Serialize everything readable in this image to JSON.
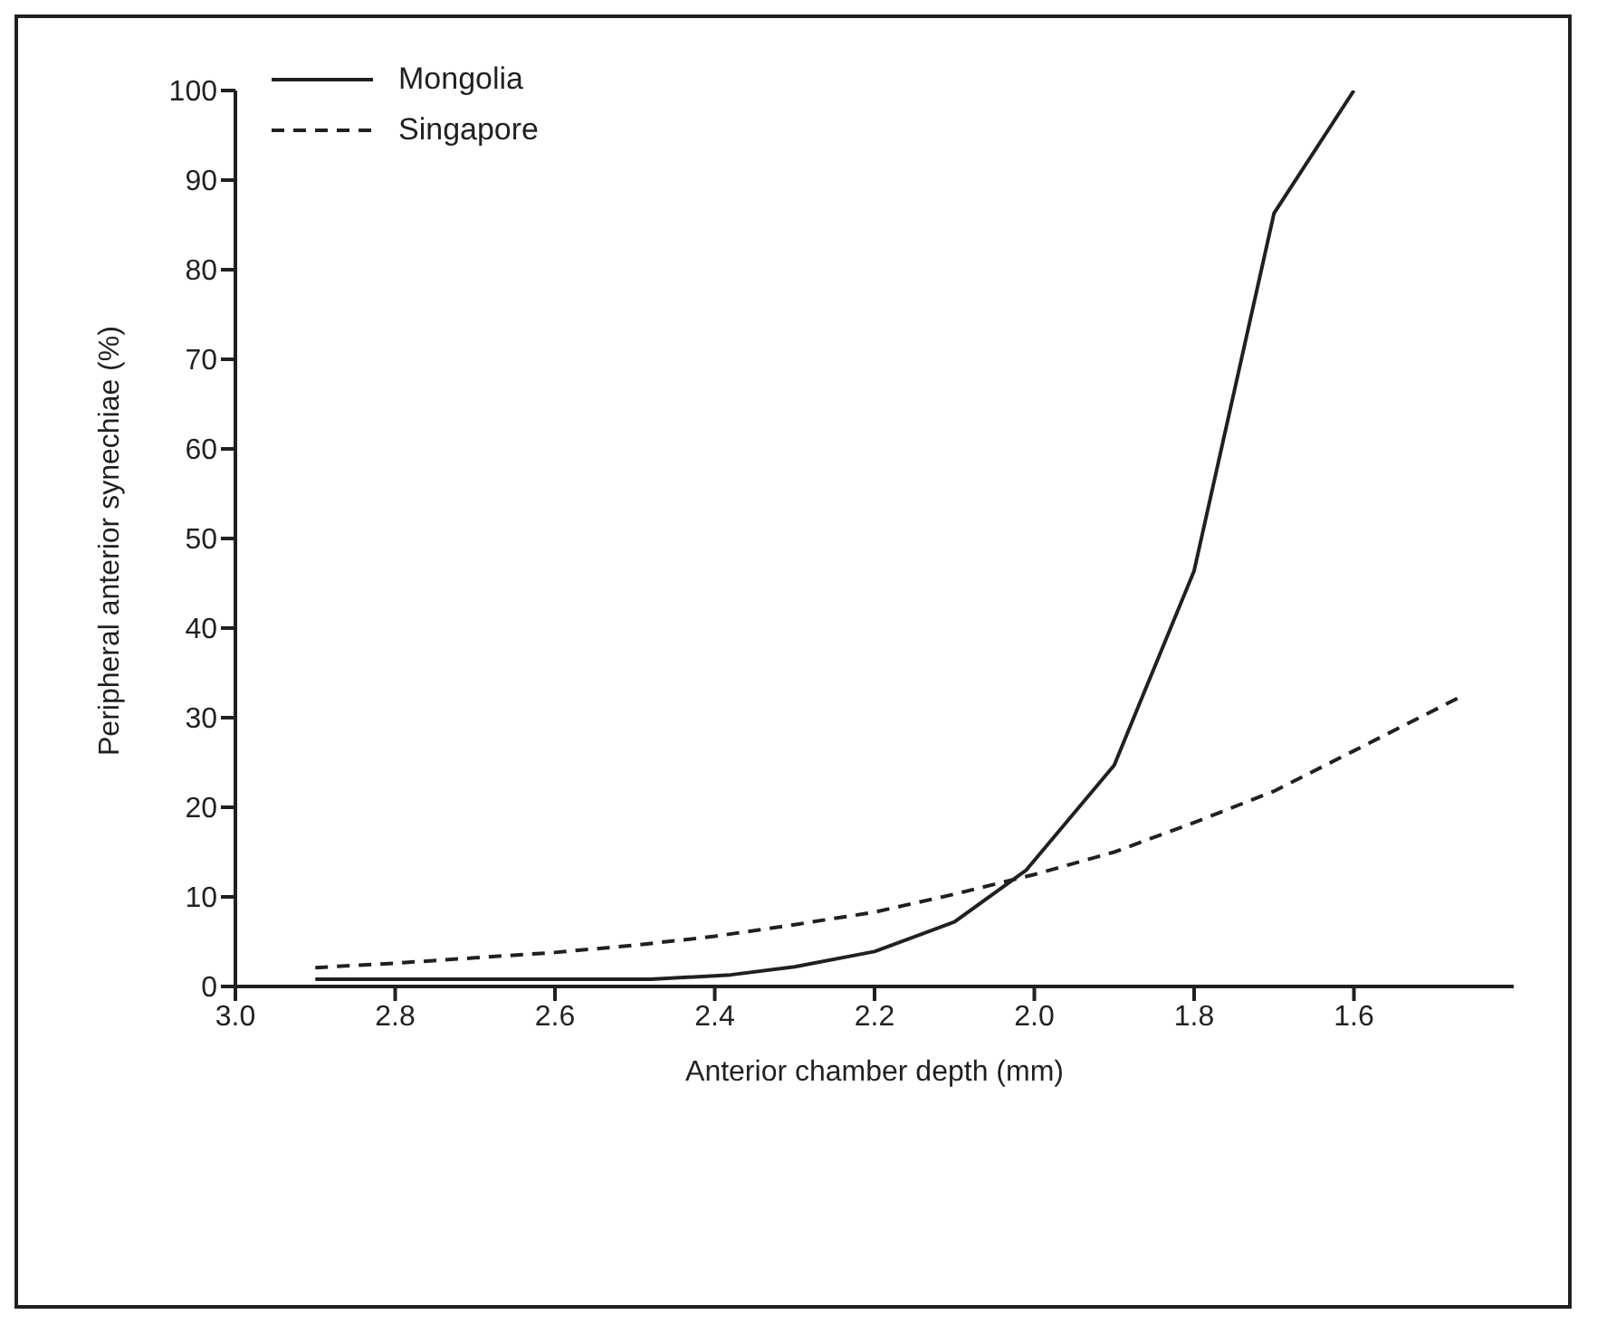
{
  "chart_data": {
    "type": "line",
    "xlabel": "Anterior chamber depth (mm)",
    "ylabel": "Peripheral anterior synechiae (%)",
    "xlim": [
      3.0,
      1.4
    ],
    "xticks": [
      {
        "value": 3.0,
        "label": "3.0"
      },
      {
        "value": 2.8,
        "label": "2.8"
      },
      {
        "value": 2.6,
        "label": "2.6"
      },
      {
        "value": 2.4,
        "label": "2.4"
      },
      {
        "value": 2.2,
        "label": "2.2"
      },
      {
        "value": 2.0,
        "label": "2.0"
      },
      {
        "value": 1.8,
        "label": "1.8"
      },
      {
        "value": 1.6,
        "label": "1.6"
      }
    ],
    "ylim": [
      0,
      100
    ],
    "yticks": [
      0,
      10,
      20,
      30,
      40,
      50,
      60,
      70,
      80,
      90,
      100
    ],
    "grid": false,
    "legend": "top left",
    "marker": "none",
    "series": [
      {
        "name": "Mongolia",
        "color": "#231f20",
        "line_style": "solid",
        "x": [
          2.9,
          2.48,
          2.38,
          2.3,
          2.2,
          2.1,
          2.01,
          1.9,
          1.8,
          1.7,
          1.6
        ],
        "values": [
          0.8,
          0.8,
          1.3,
          2.2,
          3.9,
          7.2,
          13.0,
          24.7,
          46.4,
          86.3,
          100
        ]
      },
      {
        "name": "Singapore",
        "color": "#231f20",
        "line_style": "dashed",
        "x": [
          2.9,
          2.8,
          2.7,
          2.6,
          2.5,
          2.4,
          2.3,
          2.2,
          2.1,
          2.0,
          1.9,
          1.8,
          1.7,
          1.6,
          1.465
        ],
        "values": [
          2.1,
          2.6,
          3.2,
          3.8,
          4.6,
          5.6,
          6.9,
          8.3,
          10.3,
          12.5,
          15.0,
          18.3,
          21.8,
          26.3,
          32.4
        ]
      }
    ]
  }
}
